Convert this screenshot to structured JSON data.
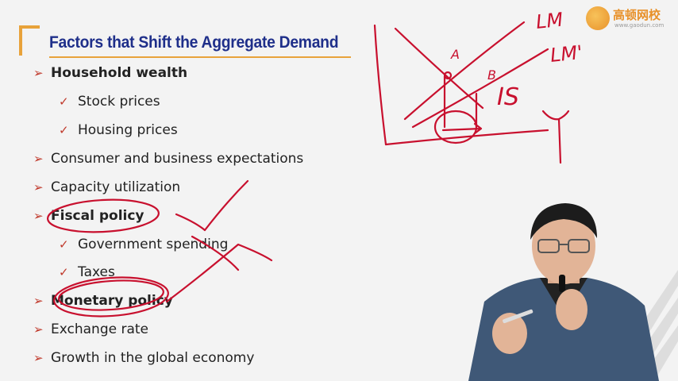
{
  "slide": {
    "title": "Factors that Shift the Aggregate Demand",
    "bullets": [
      {
        "level": 1,
        "text": "Household wealth",
        "bold": true
      },
      {
        "level": 2,
        "text": "Stock prices"
      },
      {
        "level": 2,
        "text": "Housing prices"
      },
      {
        "level": 1,
        "text": "Consumer and business expectations"
      },
      {
        "level": 1,
        "text": "Capacity utilization"
      },
      {
        "level": 1,
        "text": "Fiscal policy",
        "bold": true
      },
      {
        "level": 2,
        "text": "Government spending"
      },
      {
        "level": 2,
        "text": "Taxes"
      },
      {
        "level": 1,
        "text": "Monetary policy",
        "bold": true
      },
      {
        "level": 1,
        "text": "Exchange rate"
      },
      {
        "level": 1,
        "text": "Growth in the global economy"
      }
    ]
  },
  "logo": {
    "name": "高顿网校",
    "url": "www.gaodun.com"
  },
  "colors": {
    "title": "#1f2f8a",
    "accent": "#e8a23a",
    "bullet_marker": "#c0392b",
    "ink": "#c8102e",
    "background": "#f3f3f3"
  },
  "handwriting": {
    "lm1": "LM",
    "lm2": "LM'",
    "is": "IS",
    "y_axis": "Y",
    "point_a": "A",
    "point_b": "B"
  }
}
